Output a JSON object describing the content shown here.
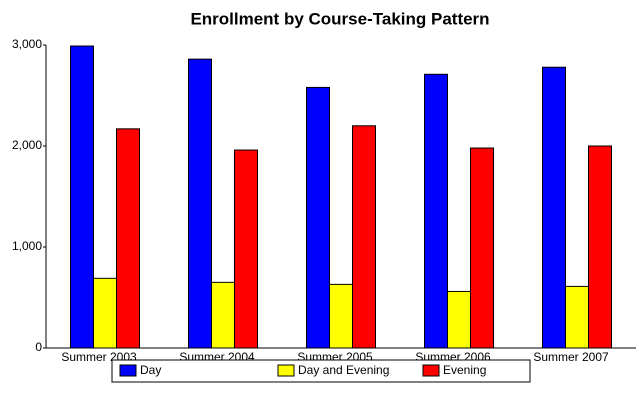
{
  "chart_data": {
    "type": "bar",
    "title": "Enrollment by Course-Taking Pattern",
    "categories": [
      "Summer 2003",
      "Summer 2004",
      "Summer 2005",
      "Summer 2006",
      "Summer 2007"
    ],
    "series": [
      {
        "name": "Day",
        "color": "#0000ff",
        "values": [
          2990,
          2860,
          2580,
          2710,
          2780
        ]
      },
      {
        "name": "Day and Evening",
        "color": "#ffff00",
        "values": [
          690,
          650,
          630,
          560,
          610
        ]
      },
      {
        "name": "Evening",
        "color": "#ff0000",
        "values": [
          2170,
          1960,
          2200,
          1980,
          2000
        ]
      }
    ],
    "ylim": [
      0,
      3000
    ],
    "yticks": [
      0,
      {
        "value": 1000,
        "label": "1,000"
      },
      {
        "value": 2000,
        "label": "2,000"
      },
      {
        "value": 3000,
        "label": "3,000"
      }
    ],
    "grid": false,
    "legend": "bottom"
  }
}
